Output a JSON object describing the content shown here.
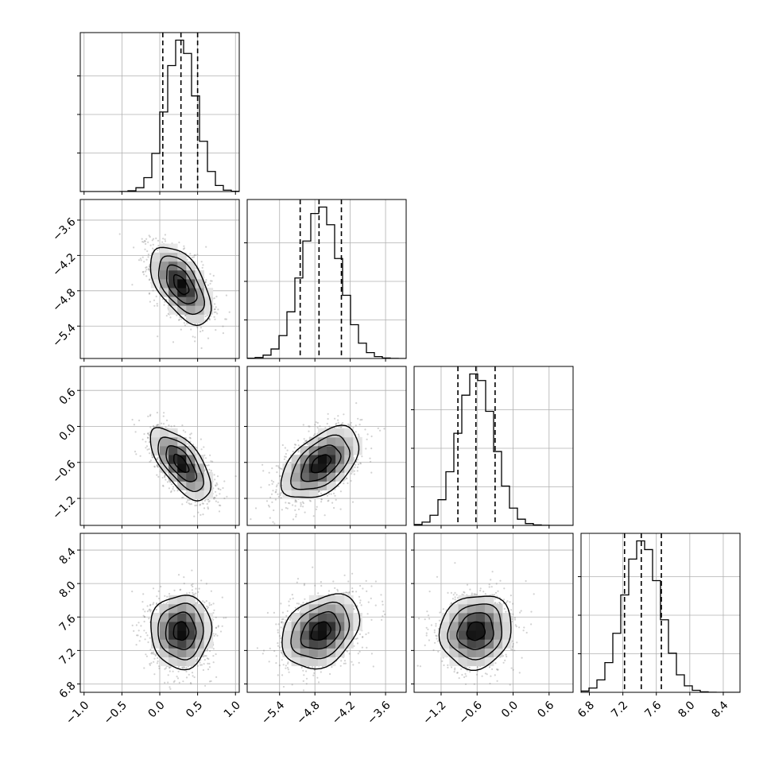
{
  "chart_data": {
    "type": "corner",
    "colors": {
      "line": "#000000",
      "grid": "#b0b0b0",
      "points": "#7f7f7f",
      "density_max": "#000000",
      "background": "#ffffff"
    },
    "grid": true,
    "parameters": [
      {
        "index": 0,
        "range": [
          -1.05,
          1.05
        ],
        "ticks": [
          -1.0,
          -0.5,
          0.0,
          0.5,
          1.0
        ],
        "tick_labels": [
          "−1.0",
          "−0.5",
          "0.0",
          "0.5",
          "1.0"
        ],
        "quantiles": [
          0.04,
          0.28,
          0.5
        ],
        "mean": 0.28,
        "sd": 0.2
      },
      {
        "index": 1,
        "range": [
          -5.95,
          -3.25
        ],
        "ticks": [
          -5.4,
          -4.8,
          -4.2,
          -3.6
        ],
        "tick_labels": [
          "−5.4",
          "−4.8",
          "−4.2",
          "−3.6"
        ],
        "quantiles": [
          -5.05,
          -4.73,
          -4.35
        ],
        "mean": -4.7,
        "sd": 0.33
      },
      {
        "index": 2,
        "range": [
          -1.65,
          1.0
        ],
        "ticks": [
          -1.2,
          -0.6,
          0.0,
          0.6
        ],
        "tick_labels": [
          "−1.2",
          "−0.6",
          "0.0",
          "0.6"
        ],
        "quantiles": [
          -0.92,
          -0.62,
          -0.3
        ],
        "mean": -0.62,
        "sd": 0.3
      },
      {
        "index": 3,
        "range": [
          6.7,
          8.6
        ],
        "ticks": [
          6.8,
          7.2,
          7.6,
          8.0,
          8.4
        ],
        "tick_labels": [
          "6.8",
          "7.2",
          "7.6",
          "8.0",
          "8.4"
        ],
        "quantiles": [
          7.22,
          7.42,
          7.66
        ],
        "mean": 7.43,
        "sd": 0.22
      }
    ],
    "correlations": [
      {
        "pair": [
          1,
          0
        ],
        "rho": -0.55
      },
      {
        "pair": [
          2,
          0
        ],
        "rho": -0.65
      },
      {
        "pair": [
          2,
          1
        ],
        "rho": 0.5
      },
      {
        "pair": [
          3,
          0
        ],
        "rho": 0.0
      },
      {
        "pair": [
          3,
          1
        ],
        "rho": 0.3
      },
      {
        "pair": [
          3,
          2
        ],
        "rho": 0.1
      }
    ],
    "histogram_bins": 20,
    "contour_levels_sigma": [
      0.5,
      1.0,
      1.5,
      2.0
    ]
  }
}
